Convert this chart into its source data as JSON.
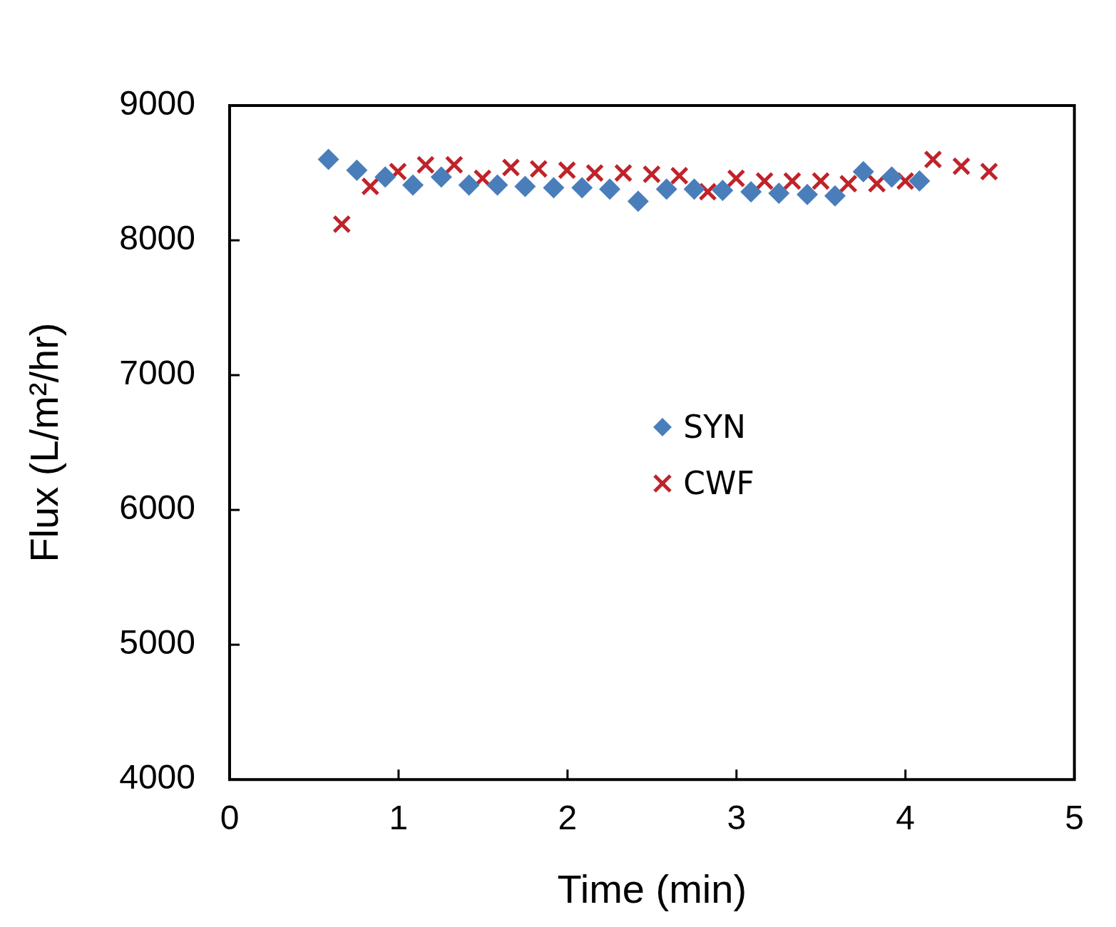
{
  "chart_data": {
    "type": "scatter",
    "xlabel": "Time (min)",
    "ylabel": "Flux (L/m²/hr)",
    "xlim": [
      0,
      5
    ],
    "xticks": [
      0,
      1,
      2,
      3,
      4,
      5
    ],
    "ylim": [
      4000,
      9000
    ],
    "yticks": [
      4000,
      5000,
      6000,
      7000,
      8000,
      9000
    ],
    "grid": false,
    "legend": "center",
    "series": [
      {
        "name": "SYN",
        "color": "#4a7ebb",
        "marker": "diamond",
        "x": [
          0.585,
          0.753,
          0.921,
          1.085,
          1.253,
          1.417,
          1.585,
          1.749,
          1.918,
          2.086,
          2.25,
          2.418,
          2.586,
          2.75,
          2.918,
          3.086,
          3.251,
          3.419,
          3.583,
          3.751,
          3.919,
          4.083
        ],
        "values": [
          8600,
          8520,
          8470,
          8410,
          8470,
          8410,
          8410,
          8400,
          8390,
          8390,
          8380,
          8290,
          8380,
          8380,
          8370,
          8360,
          8350,
          8340,
          8330,
          8510,
          8470,
          8440
        ]
      },
      {
        "name": "CWF",
        "color": "#c0232a",
        "marker": "cross",
        "x": [
          0.664,
          0.833,
          0.996,
          1.16,
          1.329,
          1.497,
          1.665,
          1.829,
          1.997,
          2.161,
          2.33,
          2.498,
          2.662,
          2.83,
          2.998,
          3.166,
          3.33,
          3.499,
          3.662,
          3.831,
          3.999,
          4.163,
          4.331,
          4.495
        ],
        "values": [
          8120,
          8400,
          8510,
          8560,
          8560,
          8460,
          8540,
          8530,
          8520,
          8500,
          8500,
          8490,
          8480,
          8360,
          8460,
          8440,
          8440,
          8440,
          8420,
          8420,
          8440,
          8600,
          8550,
          8510
        ]
      }
    ]
  }
}
